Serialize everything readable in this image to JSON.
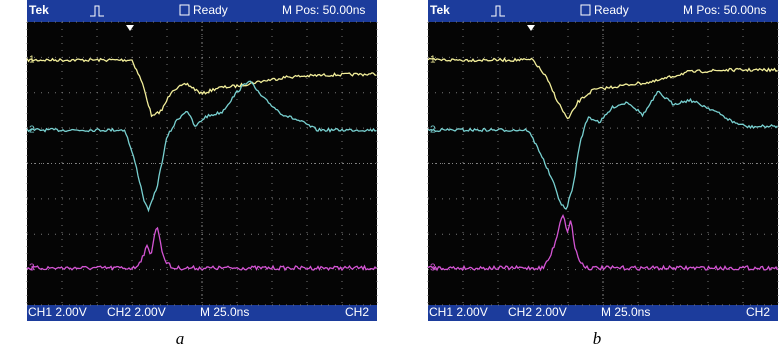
{
  "panels": [
    {
      "caption": "a",
      "header": {
        "brand": "Tek",
        "status": "Ready",
        "position": "M Pos: 50.00ns"
      },
      "footer": {
        "ch1": "CH1  2.00V",
        "ch2": "CH2  2.00V",
        "time": "M 25.0ns",
        "trigger": "CH2"
      },
      "markers": [
        "1",
        "2",
        "3"
      ]
    },
    {
      "caption": "b",
      "header": {
        "brand": "Tek",
        "status": "Ready",
        "position": "M Pos: 50.00ns"
      },
      "footer": {
        "ch1": "CH1  2.00V",
        "ch2": "CH2  2.00V",
        "time": "M 25.0ns",
        "trigger": "CH2"
      },
      "markers": [
        "1",
        "2",
        "3"
      ]
    }
  ]
}
